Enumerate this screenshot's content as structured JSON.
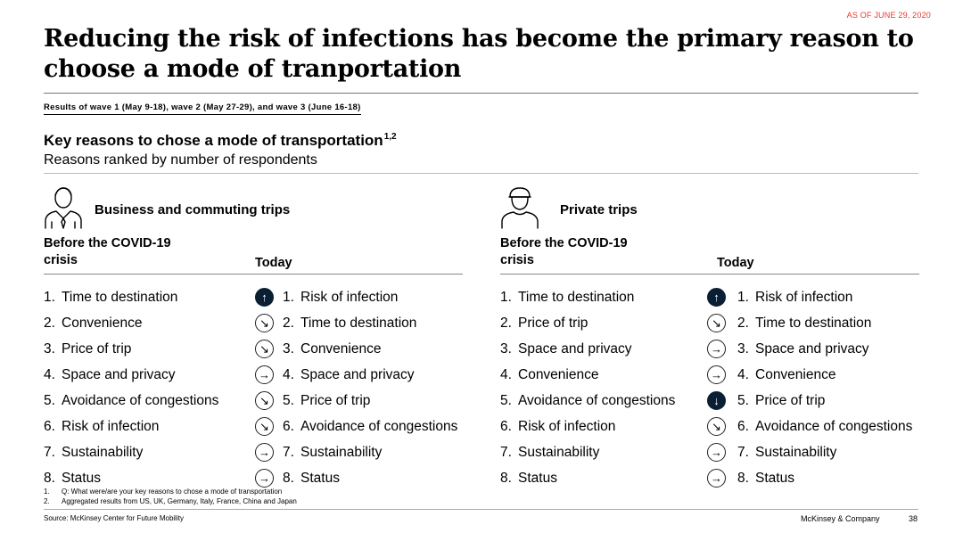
{
  "header": {
    "date_tag": "AS OF JUNE 29, 2020",
    "title": "Reducing the risk of infections has become the primary reason to choose a mode of tranportation",
    "subtitle": "Results of wave 1 (May 9-18), wave 2 (May 27-29), and wave 3 (June 16-18)"
  },
  "section": {
    "title": "Key reasons to chose a mode of transportation",
    "title_sup": "1,2",
    "subtitle": "Reasons ranked by number of respondents"
  },
  "panels": [
    {
      "icon": "businessman-icon",
      "title": "Business and commuting trips",
      "before_header": "Before the COVID-19 crisis",
      "today_header": "Today",
      "rows": [
        {
          "before_num": "1.",
          "before": "Time to destination",
          "arrow": "up",
          "arrow_glyph": "↑",
          "today_num": "1.",
          "today": "Risk of infection"
        },
        {
          "before_num": "2.",
          "before": "Convenience",
          "arrow": "down-right",
          "arrow_glyph": "↘",
          "today_num": "2.",
          "today": "Time to destination"
        },
        {
          "before_num": "3.",
          "before": "Price of trip",
          "arrow": "down-right",
          "arrow_glyph": "↘",
          "today_num": "3.",
          "today": "Convenience"
        },
        {
          "before_num": "4.",
          "before": "Space and privacy",
          "arrow": "right",
          "arrow_glyph": "→",
          "today_num": "4.",
          "today": "Space and privacy"
        },
        {
          "before_num": "5.",
          "before": "Avoidance of congestions",
          "arrow": "down-right",
          "arrow_glyph": "↘",
          "today_num": "5.",
          "today": "Price of trip"
        },
        {
          "before_num": "6.",
          "before": "Risk of infection",
          "arrow": "down-right",
          "arrow_glyph": "↘",
          "today_num": "6.",
          "today": "Avoidance of congestions"
        },
        {
          "before_num": "7.",
          "before": "Sustainability",
          "arrow": "right",
          "arrow_glyph": "→",
          "today_num": "7.",
          "today": "Sustainability"
        },
        {
          "before_num": "8.",
          "before": "Status",
          "arrow": "right",
          "arrow_glyph": "→",
          "today_num": "8.",
          "today": "Status"
        }
      ]
    },
    {
      "icon": "person-cap-icon",
      "title": "Private trips",
      "before_header": "Before the COVID-19 crisis",
      "today_header": "Today",
      "rows": [
        {
          "before_num": "1.",
          "before": "Time to destination",
          "arrow": "up",
          "arrow_glyph": "↑",
          "today_num": "1.",
          "today": "Risk of infection"
        },
        {
          "before_num": "2.",
          "before": "Price of trip",
          "arrow": "down-right",
          "arrow_glyph": "↘",
          "today_num": "2.",
          "today": "Time to destination"
        },
        {
          "before_num": "3.",
          "before": "Space and privacy",
          "arrow": "right",
          "arrow_glyph": "→",
          "today_num": "3.",
          "today": "Space and privacy"
        },
        {
          "before_num": "4.",
          "before": "Convenience",
          "arrow": "right",
          "arrow_glyph": "→",
          "today_num": "4.",
          "today": "Convenience"
        },
        {
          "before_num": "5.",
          "before": "Avoidance of congestions",
          "arrow": "down",
          "arrow_glyph": "↓",
          "today_num": "5.",
          "today": "Price of trip"
        },
        {
          "before_num": "6.",
          "before": "Risk of infection",
          "arrow": "down-right",
          "arrow_glyph": "↘",
          "today_num": "6.",
          "today": "Avoidance of congestions"
        },
        {
          "before_num": "7.",
          "before": "Sustainability",
          "arrow": "right",
          "arrow_glyph": "→",
          "today_num": "7.",
          "today": "Sustainability"
        },
        {
          "before_num": "8.",
          "before": "Status",
          "arrow": "right",
          "arrow_glyph": "→",
          "today_num": "8.",
          "today": "Status"
        }
      ]
    }
  ],
  "footnotes": [
    {
      "num": "1.",
      "text": "Q: What were/are your key reasons to chose a mode of transportation"
    },
    {
      "num": "2.",
      "text": "Aggregated results from US, UK, Germany, Italy, France, China and Japan"
    }
  ],
  "footer": {
    "source": "Source: McKinsey Center for Future Mobility",
    "brand": "McKinsey & Company",
    "page": "38"
  },
  "colors": {
    "accent_red": "#e8372b",
    "arrow_fill_dark": "#0a1f33"
  }
}
